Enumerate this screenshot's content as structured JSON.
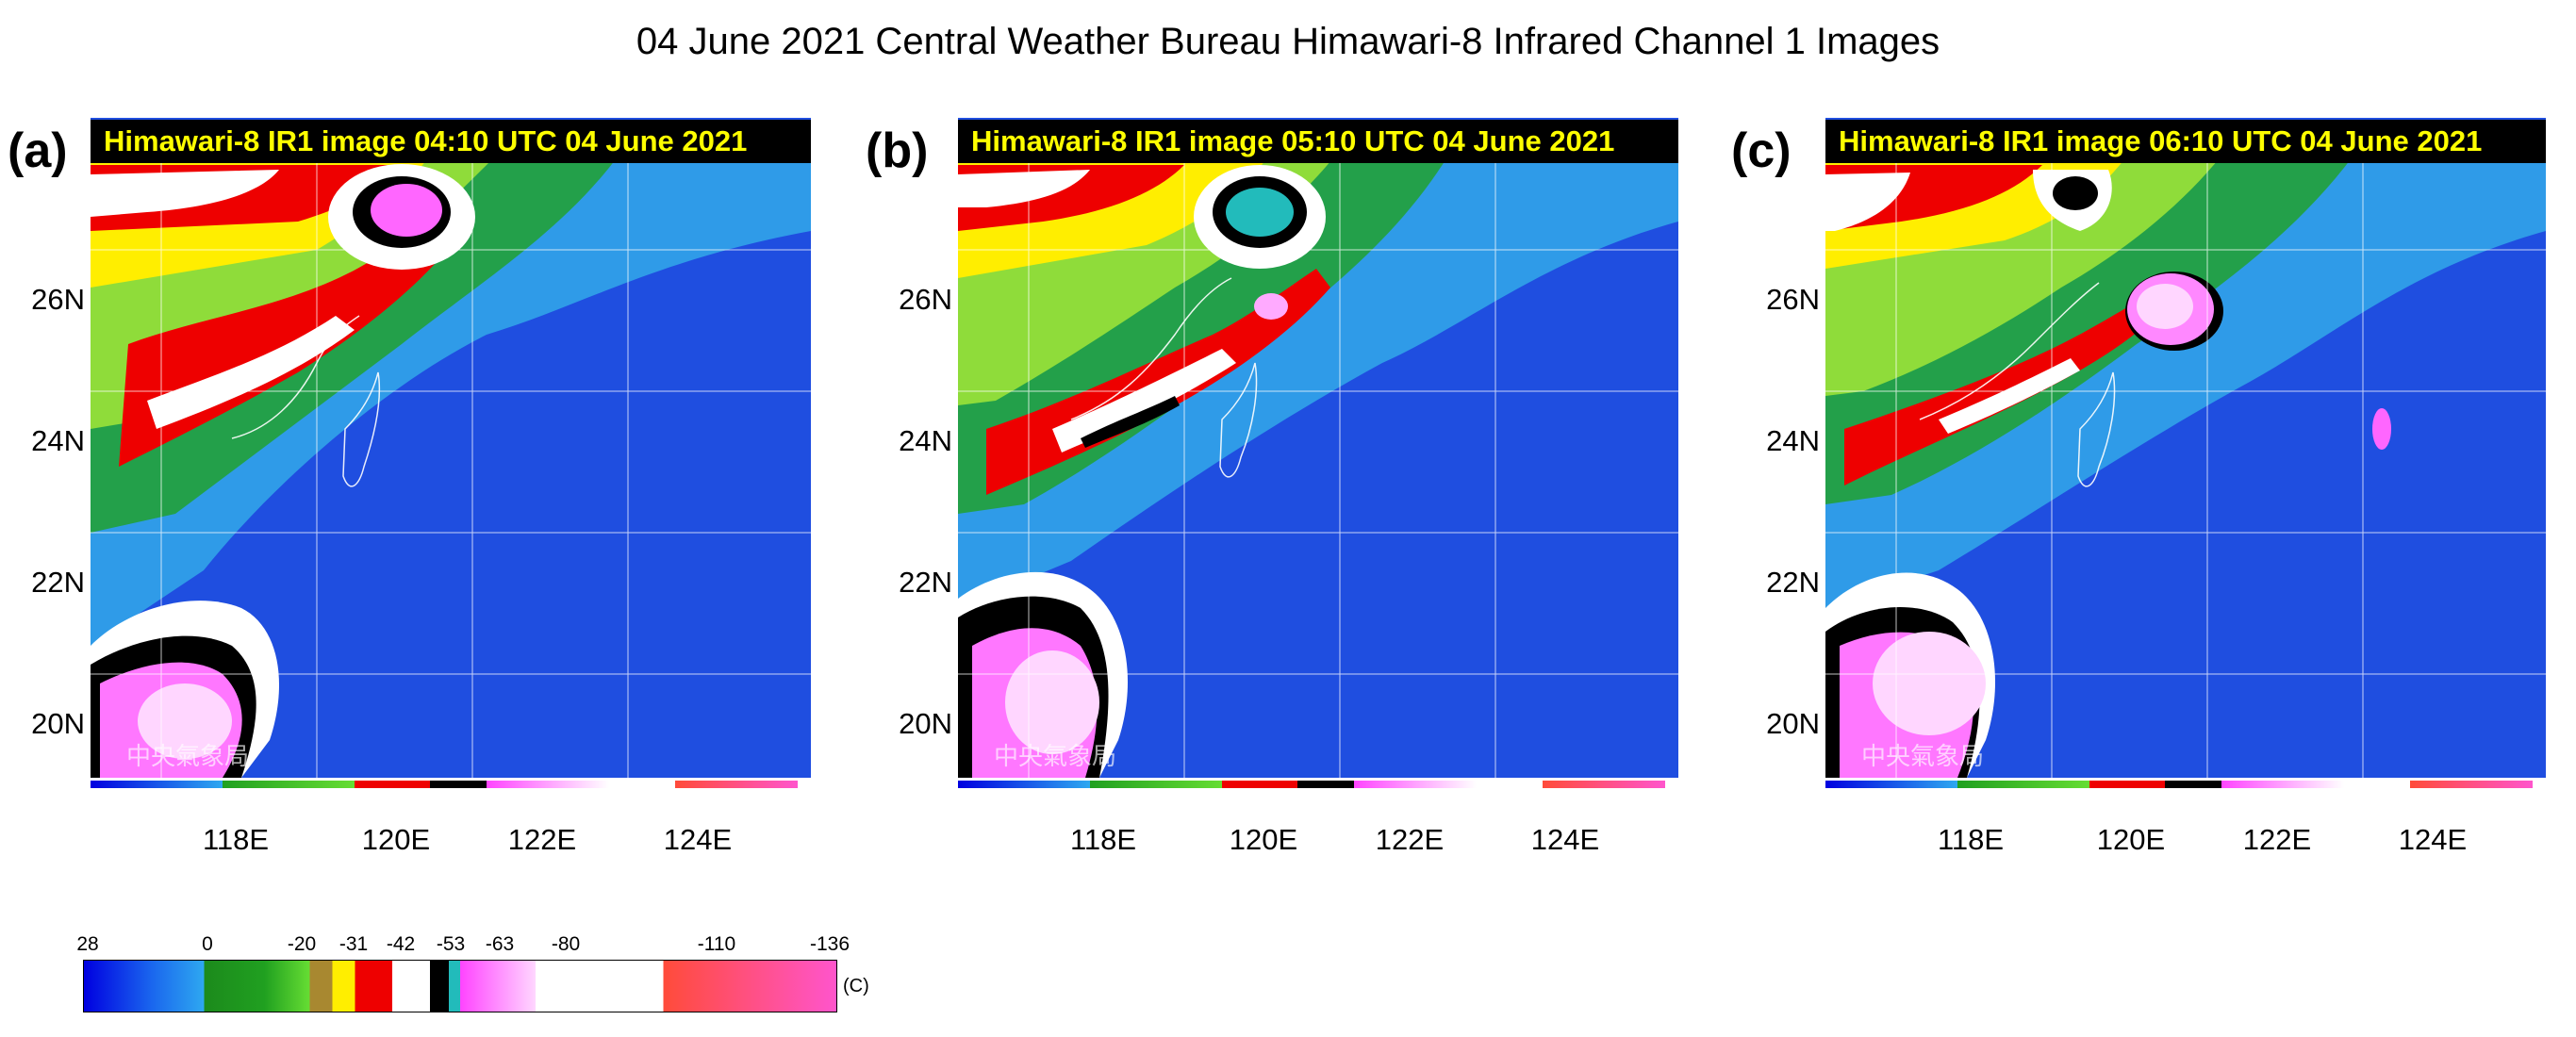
{
  "title": "04 June 2021 Central Weather Bureau Himawari-8 Infrared Channel 1 Images",
  "panels": [
    {
      "letter": "(a)",
      "caption": "Himawari-8 IR1 image 04:10 UTC 04 June 2021",
      "logo": "中央氣象局"
    },
    {
      "letter": "(b)",
      "caption": "Himawari-8 IR1 image 05:10 UTC 04 June 2021",
      "logo": "中央氣象局"
    },
    {
      "letter": "(c)",
      "caption": "Himawari-8 IR1 image 06:10 UTC 04 June 2021",
      "logo": "中央氣象局"
    }
  ],
  "latitudes": [
    "26N",
    "24N",
    "22N",
    "20N"
  ],
  "longitudes": [
    "118E",
    "120E",
    "122E",
    "124E"
  ],
  "colorbar": {
    "ticks": [
      "28",
      "0",
      "-20",
      "-31",
      "-42",
      "-53",
      "-63",
      "-80",
      "-110",
      "-136"
    ],
    "unit": "(C)",
    "colors": {
      "warm": "#0000e0",
      "sky": "#2ea8f0",
      "green": "#20a020",
      "lime": "#66dd33",
      "olive": "#a88830",
      "yellow": "#ffee00",
      "red": "#ee0000",
      "white": "#ffffff",
      "black": "#000000",
      "teal": "#22bbbb",
      "magenta": "#ff44ff",
      "salmon": "#ff4b3a",
      "pink": "#ff55cc"
    }
  }
}
